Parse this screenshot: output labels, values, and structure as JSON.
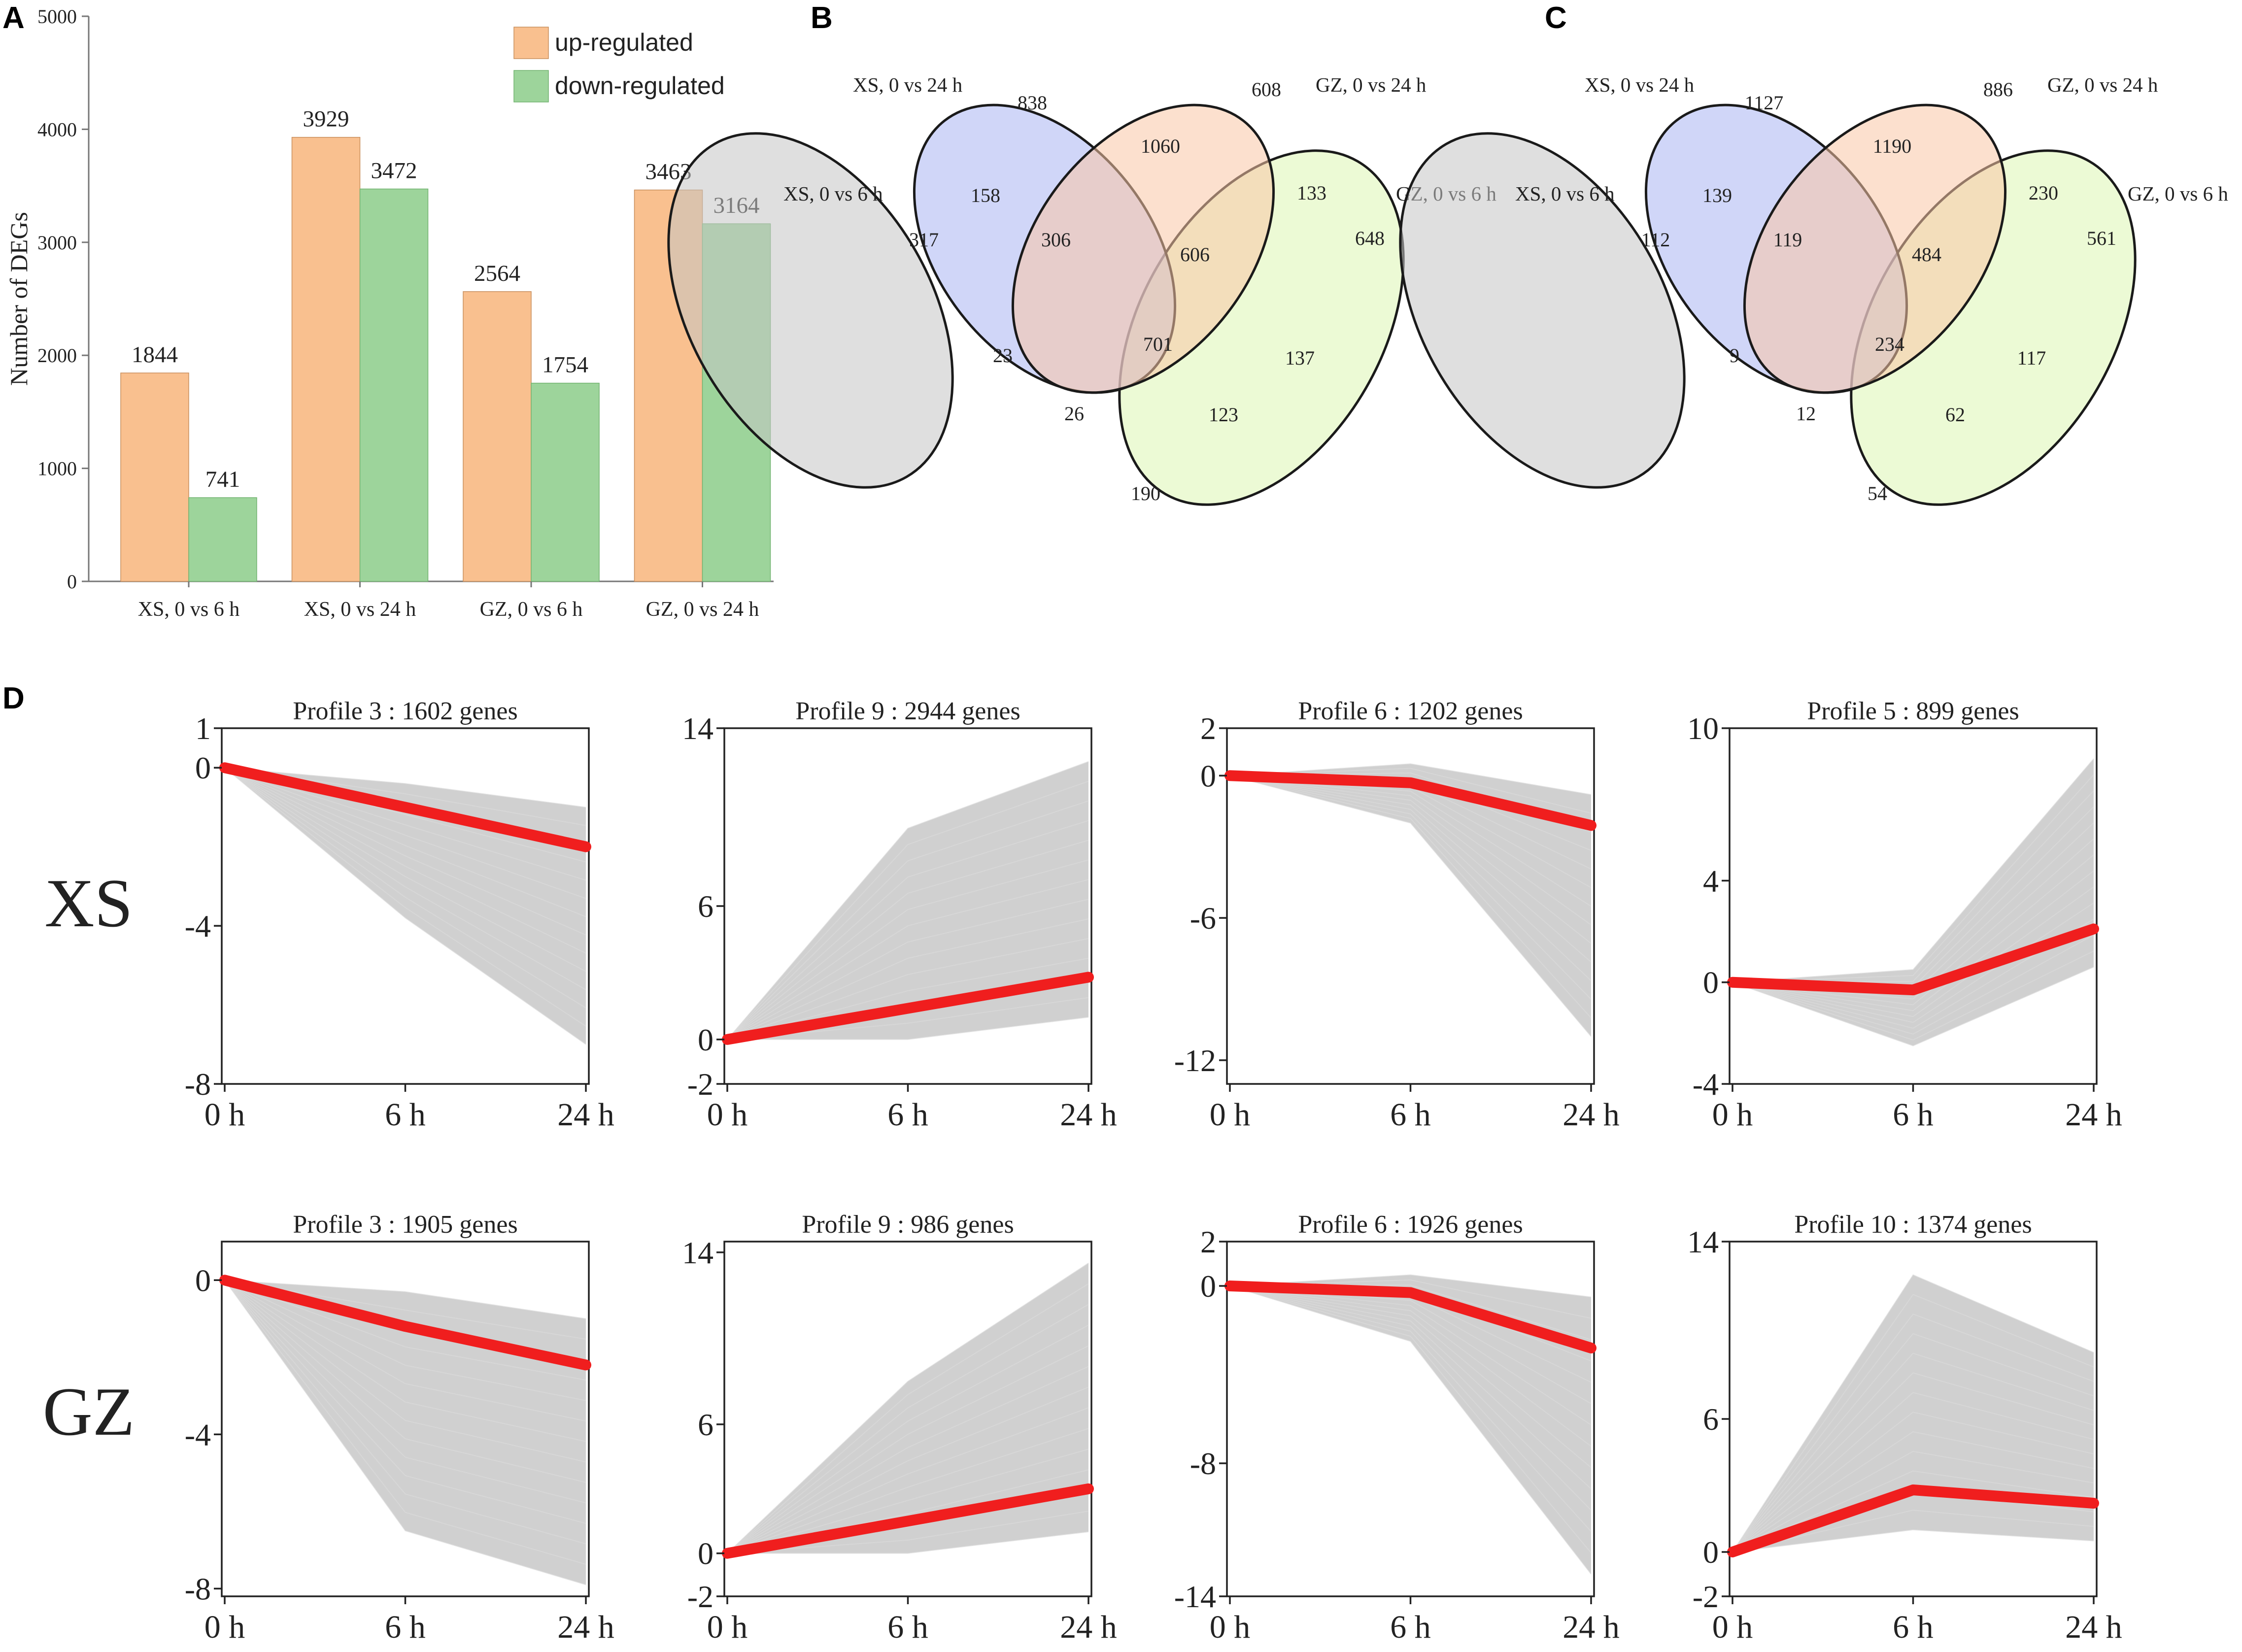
{
  "panels": {
    "A": {
      "letter": "A"
    },
    "B": {
      "letter": "B"
    },
    "C": {
      "letter": "C"
    },
    "D": {
      "letter": "D"
    }
  },
  "chart_data": [
    {
      "id": "A",
      "type": "bar",
      "categories": [
        "XS, 0 vs 6 h",
        "XS, 0 vs 24 h",
        "GZ, 0 vs 6 h",
        "GZ, 0 vs 24 h"
      ],
      "series": [
        {
          "name": "up-regulated",
          "color": "#f9c08f",
          "values": [
            1844,
            3929,
            2564,
            3463
          ]
        },
        {
          "name": "down-regulated",
          "color": "#9dd49b",
          "values": [
            741,
            3472,
            1754,
            3164
          ]
        }
      ],
      "ylabel": "Number of DEGs",
      "ylim": [
        0,
        5000
      ],
      "yticks": [
        0,
        1000,
        2000,
        3000,
        4000,
        5000
      ],
      "legend": "top-right"
    },
    {
      "id": "B",
      "type": "venn",
      "sets": [
        {
          "name": "XS, 0 vs 6 h",
          "color": "#c4c4c4"
        },
        {
          "name": "XS, 0 vs 24 h",
          "color": "#aab4f2"
        },
        {
          "name": "GZ, 0 vs 24 h",
          "color": "#f9c6a5"
        },
        {
          "name": "GZ, 0 vs 6 h",
          "color": "#ddf5b2"
        }
      ],
      "regions": [
        {
          "sets": "XS, 0 vs 24 h only",
          "value": 838
        },
        {
          "sets": "GZ, 0 vs 24 h only",
          "value": 608
        },
        {
          "sets": "XS 0 vs 24 h & GZ 0 vs 24 h",
          "value": 1060
        },
        {
          "sets": "XS 0 vs 6 h & XS 0 vs 24 h",
          "value": 158
        },
        {
          "sets": "GZ 0 vs 24 h & GZ 0 vs 6 h",
          "value": 133
        },
        {
          "sets": "XS, 0 vs 6 h only",
          "value": 317
        },
        {
          "sets": "XS 0 vs 6 h & XS 0 vs 24 h & GZ 0 vs 24 h",
          "value": 306
        },
        {
          "sets": "XS 0 vs 24 h & GZ 0 vs 24 h & GZ 0 vs 6 h",
          "value": 606
        },
        {
          "sets": "GZ, 0 vs 6 h only",
          "value": 648
        },
        {
          "sets": "all four",
          "value": 701
        },
        {
          "sets": "XS 0 vs 6 h & GZ 0 vs 24 h",
          "value": 23
        },
        {
          "sets": "XS 0 vs 24 h & GZ 0 vs 6 h",
          "value": 137
        },
        {
          "sets": "XS 0 vs 6 h & GZ 0 vs 24 h & GZ 0 vs 6 h",
          "value": 26
        },
        {
          "sets": "XS 0 vs 6 h & XS 0 vs 24 h & GZ 0 vs 6 h",
          "value": 123
        },
        {
          "sets": "XS 0 vs 6 h & GZ 0 vs 6 h",
          "value": 190
        }
      ]
    },
    {
      "id": "C",
      "type": "venn",
      "sets": [
        {
          "name": "XS, 0 vs 6 h",
          "color": "#c4c4c4"
        },
        {
          "name": "XS, 0 vs 24 h",
          "color": "#aab4f2"
        },
        {
          "name": "GZ, 0 vs 24 h",
          "color": "#f9c6a5"
        },
        {
          "name": "GZ, 0 vs 6 h",
          "color": "#ddf5b2"
        }
      ],
      "regions": [
        {
          "sets": "XS, 0 vs 24 h only",
          "value": 1127
        },
        {
          "sets": "GZ, 0 vs 24 h only",
          "value": 886
        },
        {
          "sets": "XS 0 vs 24 h & GZ 0 vs 24 h",
          "value": 1190
        },
        {
          "sets": "XS 0 vs 6 h & XS 0 vs 24 h",
          "value": 139
        },
        {
          "sets": "GZ 0 vs 24 h & GZ 0 vs 6 h",
          "value": 230
        },
        {
          "sets": "XS, 0 vs 6 h only",
          "value": 112
        },
        {
          "sets": "XS 0 vs 6 h & XS 0 vs 24 h & GZ 0 vs 24 h",
          "value": 119
        },
        {
          "sets": "XS 0 vs 24 h & GZ 0 vs 24 h & GZ 0 vs 6 h",
          "value": 484
        },
        {
          "sets": "GZ, 0 vs 6 h only",
          "value": 561
        },
        {
          "sets": "all four",
          "value": 234
        },
        {
          "sets": "XS 0 vs 6 h & GZ 0 vs 24 h",
          "value": 9
        },
        {
          "sets": "XS 0 vs 24 h & GZ 0 vs 6 h",
          "value": 117
        },
        {
          "sets": "XS 0 vs 6 h & GZ 0 vs 24 h & GZ 0 vs 6 h",
          "value": 12
        },
        {
          "sets": "XS 0 vs 6 h & XS 0 vs 24 h & GZ 0 vs 6 h",
          "value": 62
        },
        {
          "sets": "XS 0 vs 6 h & GZ 0 vs 6 h",
          "value": 54
        }
      ]
    },
    {
      "id": "D",
      "type": "line",
      "x": [
        "0 h",
        "6 h",
        "24 h"
      ],
      "row_labels": [
        "XS",
        "GZ"
      ],
      "profiles": [
        {
          "title": "Profile 3 : 1602 genes",
          "row": 0,
          "ylim": [
            -8,
            1
          ],
          "yticks": [
            1,
            0,
            -4,
            -8
          ],
          "mean": [
            0,
            -1.0,
            -2.0
          ],
          "band": [
            [
              0,
              0
            ],
            [
              -0.4,
              -3.8
            ],
            [
              -1.0,
              -7.0
            ]
          ]
        },
        {
          "title": "Profile 9 : 2944 genes",
          "row": 0,
          "ylim": [
            -2,
            14
          ],
          "yticks": [
            14,
            6,
            0,
            -2
          ],
          "mean": [
            0,
            1.4,
            2.8
          ],
          "band": [
            [
              0,
              0
            ],
            [
              0,
              9.5
            ],
            [
              1.0,
              12.5
            ]
          ]
        },
        {
          "title": "Profile 6 : 1202 genes",
          "row": 0,
          "ylim": [
            -13,
            2
          ],
          "yticks": [
            2,
            0,
            -6,
            -12
          ],
          "mean": [
            0,
            -0.3,
            -2.1
          ],
          "band": [
            [
              0,
              0
            ],
            [
              0.5,
              -2.0
            ],
            [
              -0.8,
              -11.0
            ]
          ]
        },
        {
          "title": "Profile 5 : 899 genes",
          "row": 0,
          "ylim": [
            -4,
            10
          ],
          "yticks": [
            10,
            4,
            0,
            -4
          ],
          "mean": [
            0,
            -0.3,
            2.1
          ],
          "band": [
            [
              0,
              0
            ],
            [
              0.5,
              -2.5
            ],
            [
              0.6,
              8.8
            ]
          ]
        },
        {
          "title": "Profile 3 : 1905 genes",
          "row": 1,
          "ylim": [
            -8.2,
            1
          ],
          "yticks": [
            0,
            -4,
            -8
          ],
          "mean": [
            0,
            -1.2,
            -2.2
          ],
          "band": [
            [
              0,
              0
            ],
            [
              -0.3,
              -6.5
            ],
            [
              -1.0,
              -7.9
            ]
          ]
        },
        {
          "title": "Profile 9 : 986 genes",
          "row": 1,
          "ylim": [
            -2,
            14.5
          ],
          "yticks": [
            14,
            6,
            0,
            -2
          ],
          "mean": [
            0,
            1.5,
            3.0
          ],
          "band": [
            [
              0,
              0
            ],
            [
              0,
              8.0
            ],
            [
              1.0,
              13.5
            ]
          ]
        },
        {
          "title": "Profile 6 : 1926 genes",
          "row": 1,
          "ylim": [
            -14,
            2
          ],
          "yticks": [
            2,
            0,
            -8,
            -14
          ],
          "mean": [
            0,
            -0.3,
            -2.8
          ],
          "band": [
            [
              0,
              0
            ],
            [
              0.5,
              -2.5
            ],
            [
              -0.5,
              -13.0
            ]
          ]
        },
        {
          "title": "Profile 10 : 1374 genes",
          "row": 1,
          "ylim": [
            -2,
            14
          ],
          "yticks": [
            14,
            6,
            0,
            -2
          ],
          "mean": [
            0,
            2.8,
            2.2
          ],
          "band": [
            [
              0,
              0
            ],
            [
              1.0,
              12.5
            ],
            [
              0.5,
              9.0
            ]
          ]
        }
      ]
    }
  ]
}
